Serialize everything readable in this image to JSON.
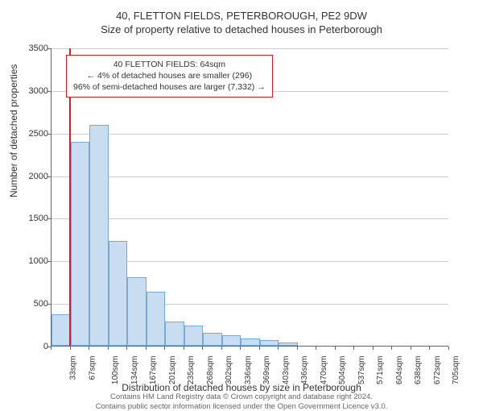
{
  "titles": {
    "line1": "40, FLETTON FIELDS, PETERBOROUGH, PE2 9DW",
    "line2": "Size of property relative to detached houses in Peterborough"
  },
  "chart": {
    "type": "histogram",
    "ylim": [
      0,
      3500
    ],
    "ytick_step": 500,
    "y_ticks": [
      0,
      500,
      1000,
      1500,
      2000,
      2500,
      3000,
      3500
    ],
    "y_label": "Number of detached properties",
    "x_label": "Distribution of detached houses by size in Peterborough",
    "x_categories": [
      "33sqm",
      "67sqm",
      "100sqm",
      "134sqm",
      "167sqm",
      "201sqm",
      "235sqm",
      "268sqm",
      "302sqm",
      "336sqm",
      "369sqm",
      "403sqm",
      "436sqm",
      "470sqm",
      "504sqm",
      "537sqm",
      "571sqm",
      "604sqm",
      "638sqm",
      "672sqm",
      "705sqm"
    ],
    "values": [
      370,
      2390,
      2590,
      1230,
      800,
      630,
      280,
      240,
      150,
      120,
      90,
      70,
      40,
      0,
      0,
      0,
      0,
      0,
      0,
      0,
      0
    ],
    "bar_fill": "#c9ddf0",
    "bar_stroke": "#7aa8d4",
    "grid_color": "#cccccc",
    "background_color": "#ffffff",
    "reference_line": {
      "position_sqm": 64,
      "color": "#d62020"
    },
    "annotation": {
      "line1": "40 FLETTON FIELDS: 64sqm",
      "line2": "← 4% of detached houses are smaller (296)",
      "line3": "96% of semi-detached houses are larger (7,332) →",
      "border_color": "#d62020"
    }
  },
  "footer": {
    "line1": "Contains HM Land Registry data © Crown copyright and database right 2024.",
    "line2": "Contains public sector information licensed under the Open Government Licence v3.0."
  }
}
